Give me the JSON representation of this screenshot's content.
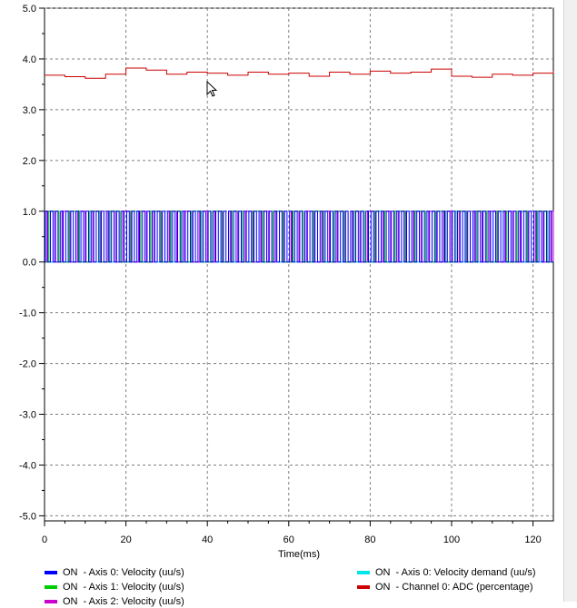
{
  "chart_data": {
    "type": "line",
    "title": "",
    "xlabel": "Time(ms)",
    "ylabel": "",
    "xlim": [
      0,
      125
    ],
    "ylim": [
      -5.1,
      5.0
    ],
    "grid": true,
    "x_ticks": [
      0,
      20,
      40,
      60,
      80,
      100,
      120
    ],
    "x_tick_labels": [
      "0",
      "20",
      "40",
      "60",
      "80",
      "100",
      "120"
    ],
    "y_ticks": [
      5,
      4,
      3,
      2,
      1,
      0,
      -1,
      -2,
      -3,
      -4,
      -5
    ],
    "y_tick_labels": [
      "5.0",
      "4.0",
      "3.0",
      "2.0",
      "1.0",
      "0.0",
      "-1.0",
      "-2.0",
      "-3.0",
      "-4.0",
      "-5.0"
    ],
    "series": [
      {
        "name": "Axis 0: Velocity (uu/s)",
        "color": "#0000ff",
        "style": "pulse",
        "low": 0,
        "high": 1,
        "period_ms": 1.25
      },
      {
        "name": "Axis 1: Velocity (uu/s)",
        "color": "#00cc00",
        "style": "pulse",
        "low": 0,
        "high": 1,
        "period_ms": 5.0
      },
      {
        "name": "Axis 2: Velocity (uu/s)",
        "color": "#cc00cc",
        "style": "pulse",
        "low": 0,
        "high": 1,
        "period_ms": 3.75
      },
      {
        "name": "Axis 0: Velocity demand (uu/s)",
        "color": "#00e5e5",
        "style": "flat",
        "value": 0
      },
      {
        "name": "Channel 0: ADC (percentage)",
        "color": "#cc0000",
        "style": "step",
        "x": [
          0,
          5,
          10,
          15,
          20,
          25,
          30,
          35,
          40,
          45,
          50,
          55,
          60,
          65,
          70,
          75,
          80,
          85,
          90,
          95,
          100,
          105,
          110,
          115,
          120,
          125
        ],
        "y": [
          3.68,
          3.65,
          3.62,
          3.7,
          3.82,
          3.78,
          3.7,
          3.74,
          3.72,
          3.68,
          3.74,
          3.7,
          3.72,
          3.66,
          3.74,
          3.7,
          3.76,
          3.72,
          3.74,
          3.8,
          3.66,
          3.64,
          3.7,
          3.68,
          3.72,
          3.76
        ]
      }
    ]
  },
  "legend": [
    {
      "state": "ON",
      "label": " - Axis 0: Velocity (uu/s)",
      "color": "#0000ff"
    },
    {
      "state": "ON",
      "label": " - Axis 1: Velocity (uu/s)",
      "color": "#00cc00"
    },
    {
      "state": "ON",
      "label": " - Axis 2: Velocity (uu/s)",
      "color": "#cc00cc"
    },
    {
      "state": "ON",
      "label": " - Axis 0: Velocity demand (uu/s)",
      "color": "#00e5e5"
    },
    {
      "state": "ON",
      "label": " - Channel 0: ADC (percentage)",
      "color": "#cc0000"
    }
  ]
}
